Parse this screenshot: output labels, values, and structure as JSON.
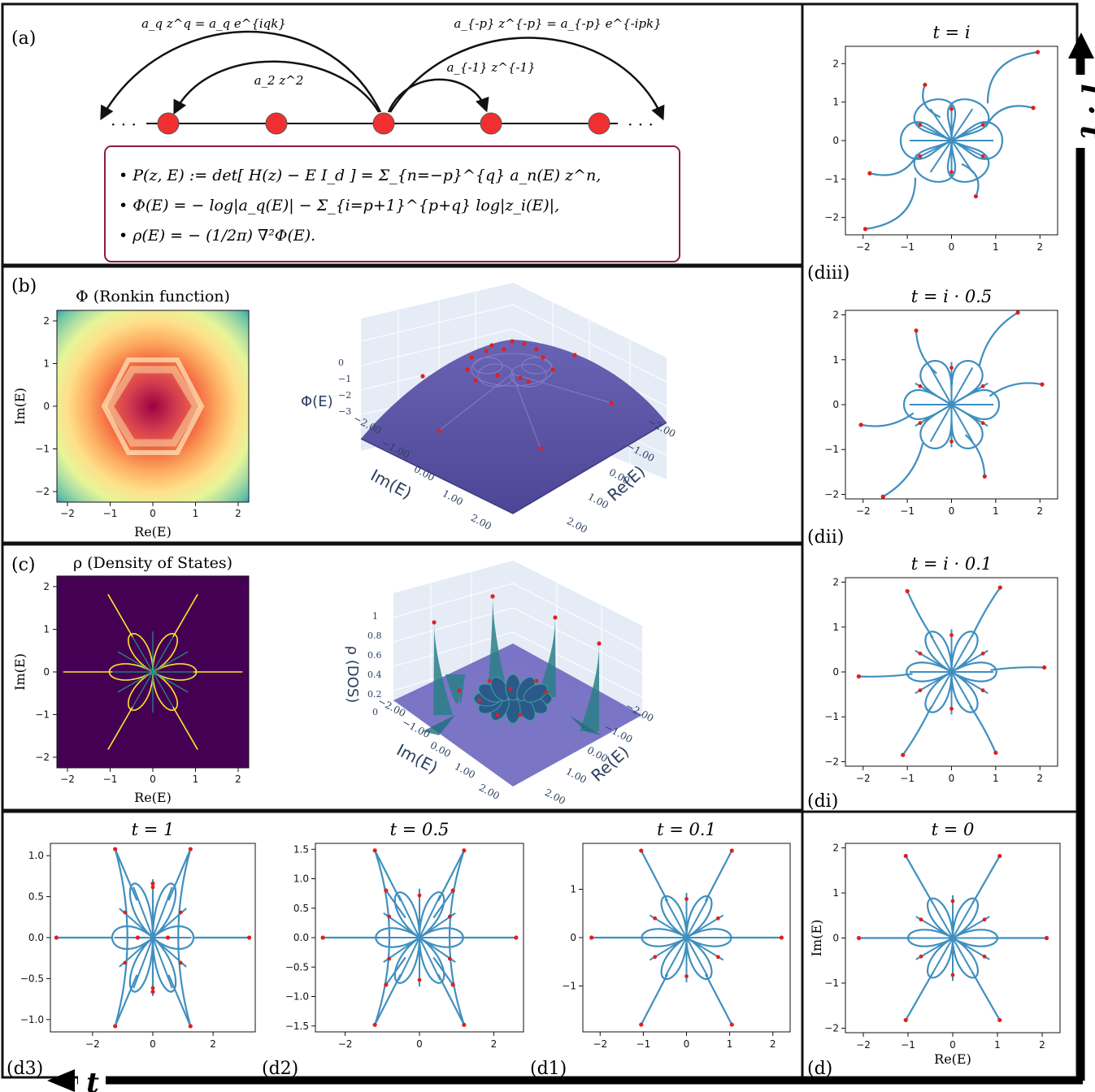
{
  "panel_labels": {
    "a": "(a)",
    "b": "(b)",
    "c": "(c)",
    "d": "(d)",
    "d1": "(d1)",
    "d2": "(d2)",
    "d3": "(d3)",
    "di": "(di)",
    "dii": "(dii)",
    "diii": "(diii)"
  },
  "panel_a": {
    "hop_labels": [
      "a_q z^q = a_q e^{iqk}",
      "a_2 z^2",
      "a_{-1} z^{-1}",
      "a_{-p} z^{-p} = a_{-p} e^{-ipk}"
    ],
    "ellipsis": "· · ·",
    "formulas": [
      "• P(z, E) := det[ H(z) − E I_d ] = Σ_{n=−p}^{q} a_n(E) z^n,",
      "• Φ(E) = − log|a_q(E)| − Σ_{i=p+1}^{p+q} log|z_i(E)|,",
      "• ρ(E) = − (1/2π) ∇²Φ(E)."
    ]
  },
  "panel_b": {
    "heatmap_title": "Φ (Ronkin function)",
    "xlabel": "Re(E)",
    "ylabel": "Im(E)",
    "ticks": [
      "−2",
      "−1",
      "0",
      "1",
      "2"
    ],
    "surface_zlabel": "Φ(E)",
    "surface_zticks": [
      "0",
      "−1",
      "−2",
      "−3"
    ],
    "surface_axis_ticks": [
      "−2.00",
      "−1.00",
      "0.00",
      "1.00",
      "2.00"
    ],
    "surface_xlabel": "Im(E)",
    "surface_ylabel": "Re(E)",
    "surface_color": "#5a52a8"
  },
  "panel_c": {
    "heatmap_title": "ρ (Density of States)",
    "xlabel": "Re(E)",
    "ylabel": "Im(E)",
    "ticks": [
      "−2",
      "−1",
      "0",
      "1",
      "2"
    ],
    "surface_zlabel": "ρ (DOS)",
    "surface_zticks": [
      "1",
      "0.8",
      "0.6",
      "0.4",
      "0.2",
      "0"
    ],
    "surface_axis_ticks": [
      "−2.00",
      "−1.00",
      "0.00",
      "1.00",
      "2.00"
    ],
    "surface_xlabel": "Im(E)",
    "surface_ylabel": "Re(E)",
    "background_color": "#440154"
  },
  "axis_arrows": {
    "vertical_label": "i · t",
    "horizontal_label": "t"
  },
  "chart_data": [
    {
      "id": "d3",
      "type": "scatter",
      "title": "t = 1",
      "t": 1,
      "xticks": [
        "−2",
        "0",
        "2"
      ],
      "yticks": [
        "1.0",
        "0.5",
        "0.0",
        "−0.5",
        "−1.0"
      ],
      "xlim": [
        -3.4,
        3.4
      ],
      "ylim": [
        -1.15,
        1.15
      ],
      "endpoints": [
        [
          -1.25,
          1.08
        ],
        [
          1.25,
          1.08
        ],
        [
          -1.25,
          -1.08
        ],
        [
          1.25,
          -1.08
        ],
        [
          -3.2,
          0
        ],
        [
          3.2,
          0
        ],
        [
          0,
          0.66
        ],
        [
          0,
          -0.66
        ],
        [
          -0.5,
          0
        ],
        [
          0.5,
          0
        ]
      ]
    },
    {
      "id": "d2",
      "type": "scatter",
      "title": "t = 0.5",
      "t": 0.5,
      "xticks": [
        "−2",
        "0",
        "2"
      ],
      "yticks": [
        "1.5",
        "1.0",
        "0.5",
        "0.0",
        "−0.5",
        "−1.0",
        "−1.5"
      ],
      "xlim": [
        -2.8,
        2.8
      ],
      "ylim": [
        -1.6,
        1.6
      ],
      "endpoints": [
        [
          -1.2,
          1.48
        ],
        [
          1.2,
          1.48
        ],
        [
          -1.2,
          -1.48
        ],
        [
          1.2,
          -1.48
        ],
        [
          -2.6,
          0
        ],
        [
          2.6,
          0
        ],
        [
          -0.9,
          0.8
        ],
        [
          0.9,
          0.8
        ],
        [
          -0.9,
          -0.8
        ],
        [
          0.9,
          -0.8
        ]
      ]
    },
    {
      "id": "d1",
      "type": "scatter",
      "title": "t = 0.1",
      "t": 0.1,
      "xticks": [
        "−2",
        "−1",
        "0",
        "1",
        "2"
      ],
      "yticks": [
        "1",
        "0",
        "−1"
      ],
      "xlim": [
        -2.4,
        2.4
      ],
      "ylim": [
        -1.95,
        1.95
      ],
      "endpoints": [
        [
          -1.05,
          1.8
        ],
        [
          1.05,
          1.8
        ],
        [
          -1.05,
          -1.8
        ],
        [
          1.05,
          -1.8
        ],
        [
          -2.2,
          0
        ],
        [
          2.2,
          0
        ]
      ]
    },
    {
      "id": "d",
      "type": "scatter",
      "title": "t = 0",
      "t": 0,
      "xlabel": "Re(E)",
      "ylabel": "Im(E)",
      "xticks": [
        "−2",
        "−1",
        "0",
        "1",
        "2"
      ],
      "yticks": [
        "2",
        "1",
        "0",
        "−1",
        "−2"
      ],
      "xlim": [
        -2.4,
        2.4
      ],
      "ylim": [
        -2.1,
        2.1
      ],
      "endpoints": [
        [
          -1.05,
          1.82
        ],
        [
          1.05,
          1.82
        ],
        [
          -1.05,
          -1.82
        ],
        [
          1.05,
          -1.82
        ],
        [
          -2.1,
          0
        ],
        [
          2.1,
          0
        ]
      ]
    },
    {
      "id": "di",
      "type": "scatter",
      "title": "t = i · 0.1",
      "t": "0.1i",
      "xticks": [
        "−2",
        "−1",
        "0",
        "1",
        "2"
      ],
      "yticks": [
        "2",
        "1",
        "0",
        "−1",
        "−2"
      ],
      "xlim": [
        -2.4,
        2.4
      ],
      "ylim": [
        -2.1,
        2.1
      ],
      "endpoints": [
        [
          -1.0,
          1.8
        ],
        [
          1.1,
          1.88
        ],
        [
          -1.1,
          -1.85
        ],
        [
          1.0,
          -1.8
        ],
        [
          -2.1,
          -0.1
        ],
        [
          2.1,
          0.1
        ]
      ]
    },
    {
      "id": "dii",
      "type": "scatter",
      "title": "t = i · 0.5",
      "t": "0.5i",
      "xticks": [
        "−2",
        "−1",
        "0",
        "1",
        "2"
      ],
      "yticks": [
        "2",
        "1",
        "0",
        "−1",
        "−2"
      ],
      "xlim": [
        -2.4,
        2.4
      ],
      "ylim": [
        -2.1,
        2.1
      ],
      "endpoints": [
        [
          -0.8,
          1.65
        ],
        [
          1.5,
          2.05
        ],
        [
          -1.55,
          -2.05
        ],
        [
          0.75,
          -1.6
        ],
        [
          -2.05,
          -0.45
        ],
        [
          2.05,
          0.45
        ]
      ]
    },
    {
      "id": "diii",
      "type": "scatter",
      "title": "t = i",
      "t": "1i",
      "xticks": [
        "−2",
        "−1",
        "0",
        "1",
        "2"
      ],
      "yticks": [
        "2",
        "1",
        "0",
        "−1",
        "−2"
      ],
      "xlim": [
        -2.4,
        2.4
      ],
      "ylim": [
        -2.45,
        2.45
      ],
      "endpoints": [
        [
          -0.6,
          1.45
        ],
        [
          1.95,
          2.3
        ],
        [
          -1.95,
          -2.3
        ],
        [
          0.55,
          -1.45
        ],
        [
          -1.85,
          -0.85
        ],
        [
          1.85,
          0.85
        ]
      ]
    }
  ]
}
